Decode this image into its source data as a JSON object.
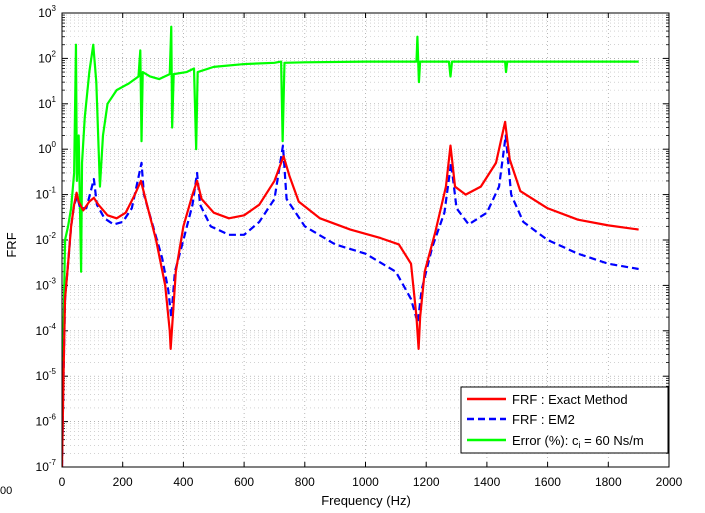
{
  "chart_data": {
    "type": "line",
    "xlabel": "Frequency (Hz)",
    "ylabel": "FRF",
    "xlim": [
      0,
      2000
    ],
    "ylim_log10": [
      -7,
      3
    ],
    "y_scale": "log",
    "grid": true,
    "x_ticks": [
      "0",
      "200",
      "400",
      "600",
      "800",
      "1000",
      "1200",
      "1400",
      "1600",
      "1800",
      "2000"
    ],
    "stray_label": "00",
    "legend": {
      "position": "bottom-right",
      "entries": [
        {
          "label": "FRF : Exact Method",
          "color": "#ff0000",
          "style": "solid"
        },
        {
          "label": "FRF : EM2",
          "color": "#0000ff",
          "style": "dashed"
        },
        {
          "label": "Error (%): c",
          "sub": "i",
          "suffix": " = 60 Ns/m",
          "color": "#00ff00",
          "style": "solid"
        }
      ]
    },
    "series": [
      {
        "name": "FRF : Exact Method",
        "color": "#ff0000",
        "points": [
          [
            0,
            1e-07
          ],
          [
            5,
            1e-05
          ],
          [
            10,
            0.0005
          ],
          [
            20,
            0.003
          ],
          [
            30,
            0.02
          ],
          [
            40,
            0.06
          ],
          [
            48,
            0.11
          ],
          [
            55,
            0.07
          ],
          [
            70,
            0.045
          ],
          [
            90,
            0.07
          ],
          [
            105,
            0.085
          ],
          [
            120,
            0.06
          ],
          [
            150,
            0.035
          ],
          [
            180,
            0.03
          ],
          [
            210,
            0.04
          ],
          [
            240,
            0.1
          ],
          [
            260,
            0.2
          ],
          [
            280,
            0.06
          ],
          [
            310,
            0.01
          ],
          [
            340,
            0.001
          ],
          [
            355,
            0.0001
          ],
          [
            358,
            4e-05
          ],
          [
            362,
            0.0001
          ],
          [
            375,
            0.002
          ],
          [
            400,
            0.02
          ],
          [
            430,
            0.1
          ],
          [
            445,
            0.2
          ],
          [
            460,
            0.08
          ],
          [
            500,
            0.04
          ],
          [
            550,
            0.03
          ],
          [
            600,
            0.035
          ],
          [
            650,
            0.06
          ],
          [
            700,
            0.2
          ],
          [
            730,
            0.7
          ],
          [
            750,
            0.25
          ],
          [
            780,
            0.07
          ],
          [
            850,
            0.03
          ],
          [
            950,
            0.017
          ],
          [
            1050,
            0.011
          ],
          [
            1110,
            0.008
          ],
          [
            1150,
            0.003
          ],
          [
            1168,
            0.0002
          ],
          [
            1175,
            4e-05
          ],
          [
            1180,
            0.0002
          ],
          [
            1195,
            0.002
          ],
          [
            1230,
            0.015
          ],
          [
            1265,
            0.15
          ],
          [
            1280,
            1.2
          ],
          [
            1295,
            0.15
          ],
          [
            1330,
            0.1
          ],
          [
            1380,
            0.15
          ],
          [
            1430,
            0.5
          ],
          [
            1460,
            4
          ],
          [
            1475,
            0.6
          ],
          [
            1510,
            0.12
          ],
          [
            1600,
            0.05
          ],
          [
            1700,
            0.028
          ],
          [
            1800,
            0.021
          ],
          [
            1900,
            0.017
          ]
        ]
      },
      {
        "name": "FRF : EM2",
        "color": "#0000ff",
        "points": [
          [
            0,
            1e-07
          ],
          [
            5,
            1e-05
          ],
          [
            10,
            0.0005
          ],
          [
            20,
            0.003
          ],
          [
            30,
            0.02
          ],
          [
            40,
            0.06
          ],
          [
            50,
            0.09
          ],
          [
            60,
            0.05
          ],
          [
            80,
            0.05
          ],
          [
            95,
            0.12
          ],
          [
            105,
            0.22
          ],
          [
            115,
            0.06
          ],
          [
            140,
            0.03
          ],
          [
            170,
            0.022
          ],
          [
            200,
            0.025
          ],
          [
            230,
            0.05
          ],
          [
            255,
            0.3
          ],
          [
            262,
            0.5
          ],
          [
            270,
            0.1
          ],
          [
            300,
            0.02
          ],
          [
            330,
            0.004
          ],
          [
            350,
            0.0008
          ],
          [
            360,
            0.0002
          ],
          [
            372,
            0.002
          ],
          [
            400,
            0.01
          ],
          [
            430,
            0.06
          ],
          [
            445,
            0.3
          ],
          [
            455,
            0.06
          ],
          [
            490,
            0.02
          ],
          [
            550,
            0.013
          ],
          [
            600,
            0.013
          ],
          [
            650,
            0.025
          ],
          [
            700,
            0.08
          ],
          [
            728,
            1.2
          ],
          [
            740,
            0.08
          ],
          [
            800,
            0.02
          ],
          [
            900,
            0.008
          ],
          [
            1000,
            0.005
          ],
          [
            1100,
            0.002
          ],
          [
            1150,
            0.0005
          ],
          [
            1172,
            0.00015
          ],
          [
            1185,
            0.0008
          ],
          [
            1220,
            0.007
          ],
          [
            1260,
            0.04
          ],
          [
            1282,
            0.5
          ],
          [
            1300,
            0.05
          ],
          [
            1340,
            0.022
          ],
          [
            1400,
            0.04
          ],
          [
            1440,
            0.15
          ],
          [
            1462,
            2
          ],
          [
            1480,
            0.1
          ],
          [
            1520,
            0.025
          ],
          [
            1600,
            0.01
          ],
          [
            1700,
            0.005
          ],
          [
            1800,
            0.003
          ],
          [
            1900,
            0.0023
          ]
        ]
      },
      {
        "name": "Error (%): ci = 60 Ns/m",
        "color": "#00ff00",
        "points": [
          [
            0,
            1e-06
          ],
          [
            10,
            0.01
          ],
          [
            20,
            0.02
          ],
          [
            30,
            0.05
          ],
          [
            40,
            0.3
          ],
          [
            46,
            200
          ],
          [
            49,
            0.2
          ],
          [
            55,
            2
          ],
          [
            63,
            0.002
          ],
          [
            66,
            0.5
          ],
          [
            75,
            5
          ],
          [
            90,
            50
          ],
          [
            103,
            200
          ],
          [
            113,
            30
          ],
          [
            125,
            0.15
          ],
          [
            135,
            2
          ],
          [
            150,
            10
          ],
          [
            180,
            20
          ],
          [
            220,
            28
          ],
          [
            252,
            40
          ],
          [
            258,
            150
          ],
          [
            262,
            1.5
          ],
          [
            266,
            50
          ],
          [
            290,
            40
          ],
          [
            320,
            35
          ],
          [
            355,
            45
          ],
          [
            360,
            500
          ],
          [
            363,
            3
          ],
          [
            368,
            45
          ],
          [
            410,
            50
          ],
          [
            435,
            60
          ],
          [
            442,
            1
          ],
          [
            447,
            50
          ],
          [
            500,
            65
          ],
          [
            600,
            75
          ],
          [
            700,
            80
          ],
          [
            722,
            85
          ],
          [
            727,
            1.5
          ],
          [
            733,
            80
          ],
          [
            800,
            82
          ],
          [
            1000,
            85
          ],
          [
            1100,
            85
          ],
          [
            1168,
            85
          ],
          [
            1171,
            300
          ],
          [
            1176,
            30
          ],
          [
            1180,
            85
          ],
          [
            1275,
            85
          ],
          [
            1280,
            40
          ],
          [
            1285,
            85
          ],
          [
            1460,
            85
          ],
          [
            1463,
            50
          ],
          [
            1467,
            85
          ],
          [
            1600,
            85
          ],
          [
            1900,
            85
          ]
        ]
      }
    ]
  }
}
